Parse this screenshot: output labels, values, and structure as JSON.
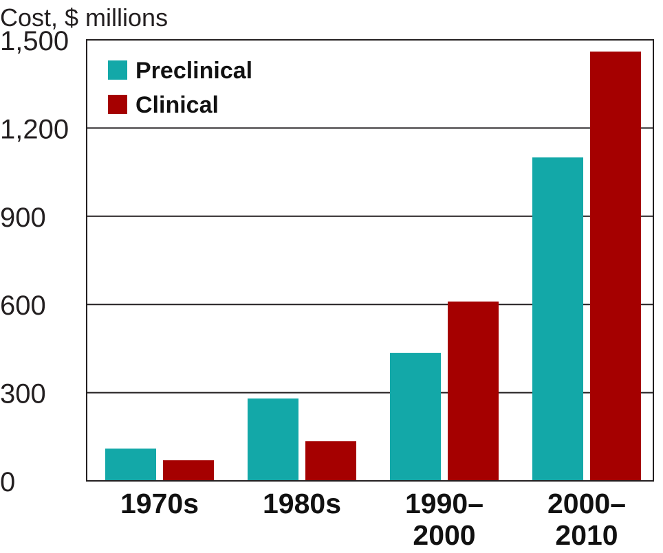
{
  "chart_data": {
    "type": "bar",
    "title": "",
    "xlabel": "",
    "ylabel": "Cost, $ millions",
    "categories": [
      [
        "1970s"
      ],
      [
        "1980s"
      ],
      [
        "1990–",
        "2000"
      ],
      [
        "2000–",
        "2010"
      ]
    ],
    "series": [
      {
        "name": "Preclinical",
        "color": "#13a8a8",
        "values": [
          110,
          280,
          435,
          1100
        ]
      },
      {
        "name": "Clinical",
        "color": "#a50000",
        "values": [
          70,
          135,
          610,
          1460
        ]
      }
    ],
    "yticks": [
      0,
      300,
      600,
      900,
      1200,
      1500
    ],
    "ytick_labels": [
      "0",
      "300",
      "600",
      "900",
      "1,200",
      "1,500"
    ],
    "ylim": [
      0,
      1500
    ],
    "grid": true,
    "legend_position": "top-left"
  }
}
